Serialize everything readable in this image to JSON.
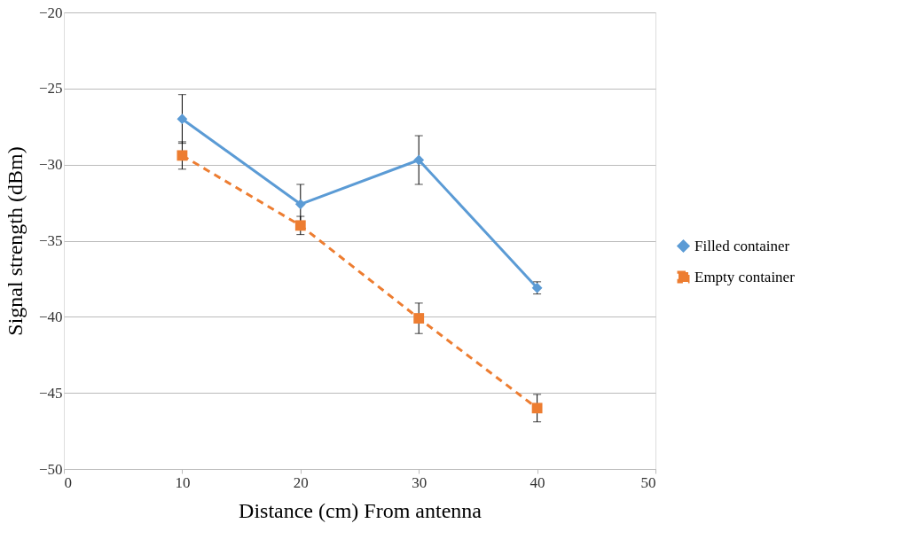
{
  "chart_data": {
    "type": "line",
    "xlabel": "Distance (cm) From antenna",
    "ylabel": "Signal strength (dBm)",
    "x": [
      10,
      20,
      30,
      40
    ],
    "series": [
      {
        "name": "Filled container",
        "color": "#5b9bd5",
        "values": [
          -27.0,
          -32.6,
          -29.7,
          -38.1
        ],
        "errors": [
          1.6,
          1.3,
          1.6,
          0.4
        ],
        "marker": "diamond",
        "line_style": "solid"
      },
      {
        "name": "Empty container",
        "color": "#ed7d31",
        "values": [
          -29.4,
          -34.0,
          -40.1,
          -46.0
        ],
        "errors": [
          0.9,
          0.6,
          1.0,
          0.9
        ],
        "marker": "square",
        "line_style": "dashed"
      }
    ],
    "xlim": [
      0,
      50
    ],
    "xticks": [
      0,
      10,
      20,
      30,
      40,
      50
    ],
    "ylim": [
      -50,
      -20
    ],
    "yticks": [
      -50,
      -45,
      -40,
      -35,
      -30,
      -25,
      -20
    ],
    "grid": "y",
    "legend": "right"
  }
}
